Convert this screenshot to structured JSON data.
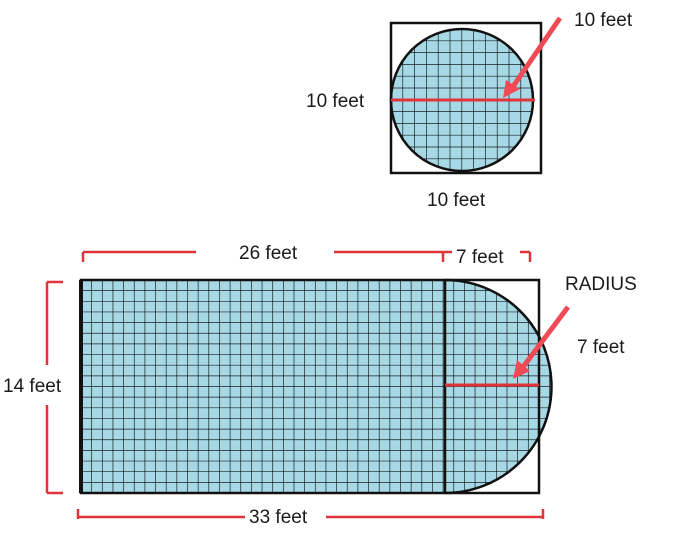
{
  "top_figure": {
    "radius_label": "10 feet",
    "diameter_label": "10 feet",
    "bottom_label": "10 feet"
  },
  "bottom_figure": {
    "top_left_label": "26 feet",
    "top_right_label": "7 feet",
    "radius_title": "RADIUS",
    "radius_label": "7 feet",
    "height_label": "14 feet",
    "bottom_label": "33 feet"
  },
  "colors": {
    "fill": "#a7d8e6",
    "dimension": "#e0343a",
    "arrow": "#ef4a55",
    "outline": "#111111"
  }
}
